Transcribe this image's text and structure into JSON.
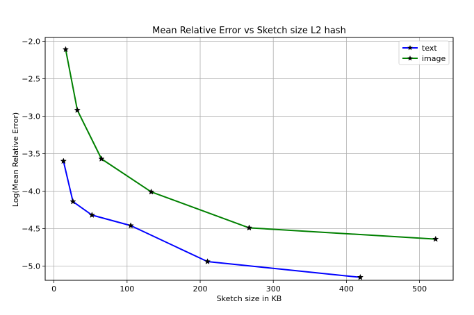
{
  "chart_data": {
    "type": "line",
    "title": "Mean Relative Error vs Sketch size L2 hash",
    "xlabel": "Sketch size in KB",
    "ylabel": "Log(Mean Relative Error)",
    "xlim": [
      -12,
      546
    ],
    "ylim": [
      -5.19,
      -1.95
    ],
    "xticks": [
      0,
      100,
      200,
      300,
      400,
      500
    ],
    "yticks": [
      -5.0,
      -4.5,
      -4.0,
      -3.5,
      -3.0,
      -2.5,
      -2.0
    ],
    "xtick_labels": [
      "0",
      "100",
      "200",
      "300",
      "400",
      "500"
    ],
    "ytick_labels": [
      "−5.0",
      "−4.5",
      "−4.0",
      "−3.5",
      "−3.0",
      "−2.5",
      "−2.0"
    ],
    "grid": true,
    "legend_position": "top-right",
    "marker": "star",
    "series": [
      {
        "name": "text",
        "color": "#0000ff",
        "x": [
          13,
          26,
          52,
          105,
          210,
          419
        ],
        "y": [
          -3.6,
          -4.14,
          -4.32,
          -4.46,
          -4.94,
          -5.15
        ]
      },
      {
        "name": "image",
        "color": "#008000",
        "x": [
          16,
          32,
          65,
          133,
          267,
          522
        ],
        "y": [
          -2.11,
          -2.92,
          -3.57,
          -4.01,
          -4.49,
          -4.64
        ]
      }
    ]
  }
}
